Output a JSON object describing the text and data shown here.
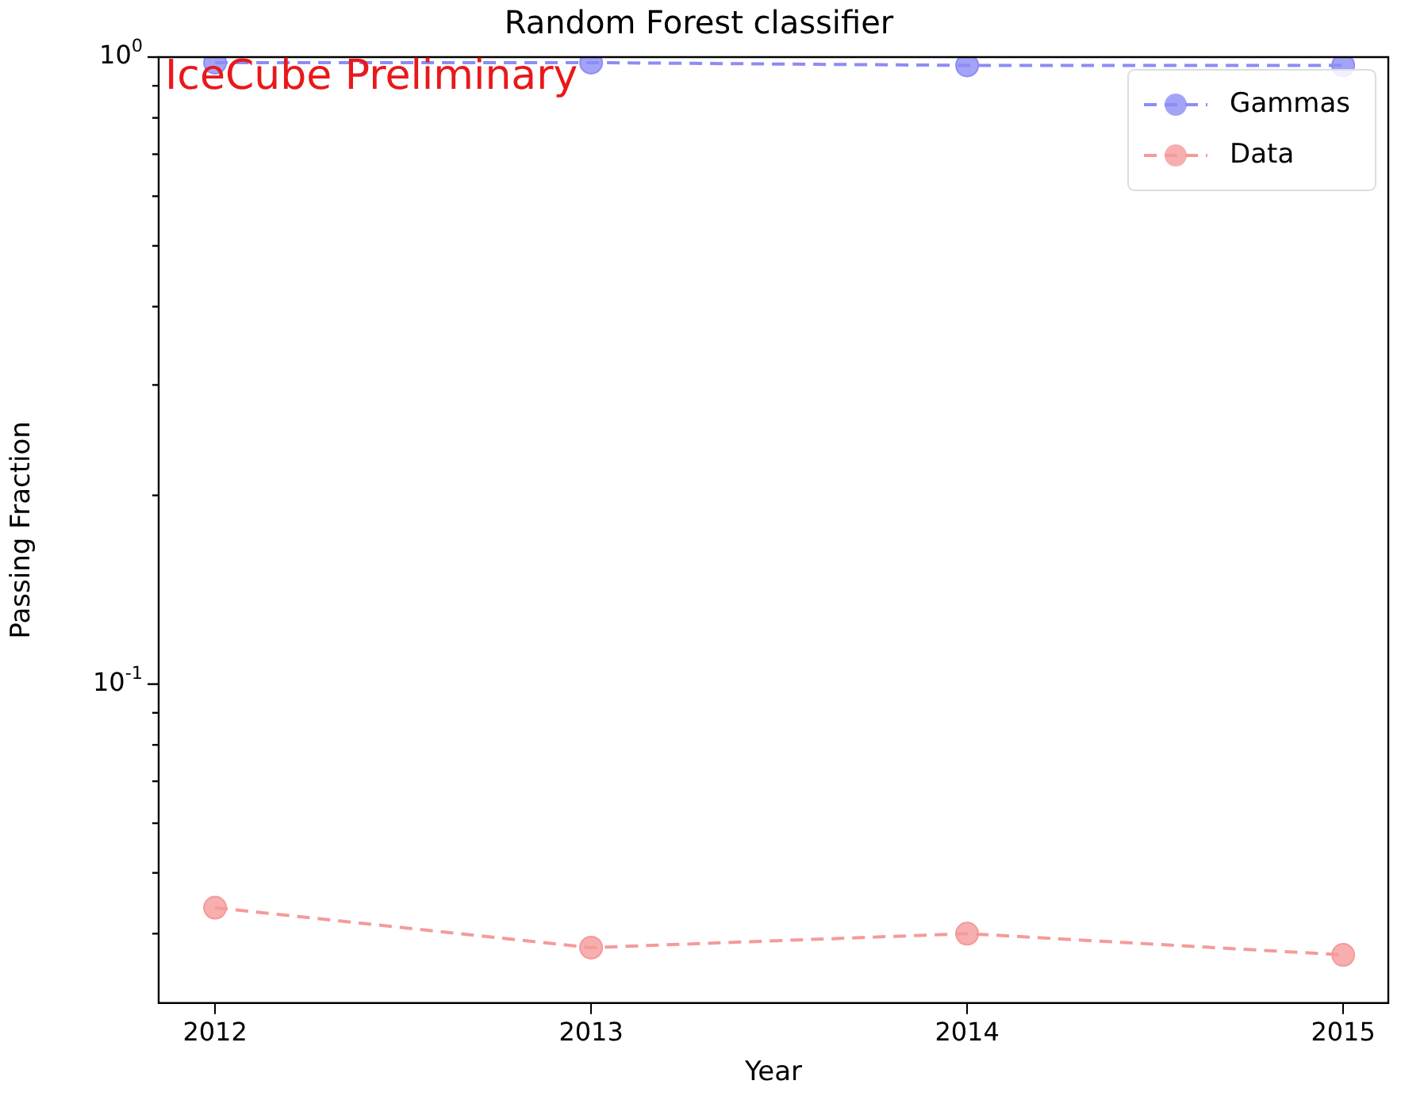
{
  "chart_data": {
    "type": "line",
    "title": "Random Forest classifier",
    "xlabel": "Year",
    "ylabel": "Passing Fraction",
    "annotations": [
      "IceCube Preliminary"
    ],
    "x": [
      2012,
      2013,
      2014,
      2015
    ],
    "series": [
      {
        "name": "Gammas",
        "color": "#8c8cf5",
        "values": [
          0.98,
          0.98,
          0.97,
          0.97
        ]
      },
      {
        "name": "Data",
        "color": "#f59a9a",
        "values": [
          0.044,
          0.038,
          0.04,
          0.037
        ]
      }
    ],
    "log": "y",
    "xlim": [
      2011.85,
      2015.12
    ],
    "xticks": [
      2012,
      2013,
      2014,
      2015
    ],
    "ylim": [
      0.031,
      1
    ],
    "yticks": [
      {
        "value": 1,
        "label": "10$^{0}$"
      },
      {
        "value": 0.9,
        "label": null
      },
      {
        "value": 0.8,
        "label": null
      },
      {
        "value": 0.7,
        "label": null
      },
      {
        "value": 0.6,
        "label": null
      },
      {
        "value": 0.5,
        "label": null
      },
      {
        "value": 0.4,
        "label": null
      },
      {
        "value": 0.3,
        "label": null
      },
      {
        "value": 0.2,
        "label": null
      },
      {
        "value": 0.1,
        "label": "10$^{-1}$"
      },
      {
        "value": 0.09,
        "label": null
      },
      {
        "value": 0.08,
        "label": null
      },
      {
        "value": 0.07,
        "label": null
      },
      {
        "value": 0.06,
        "label": null
      },
      {
        "value": 0.05,
        "label": null
      },
      {
        "value": 0.04,
        "label": null
      }
    ],
    "grid": false,
    "legend": "top right",
    "marker": "circle",
    "line_style": "dashed"
  }
}
